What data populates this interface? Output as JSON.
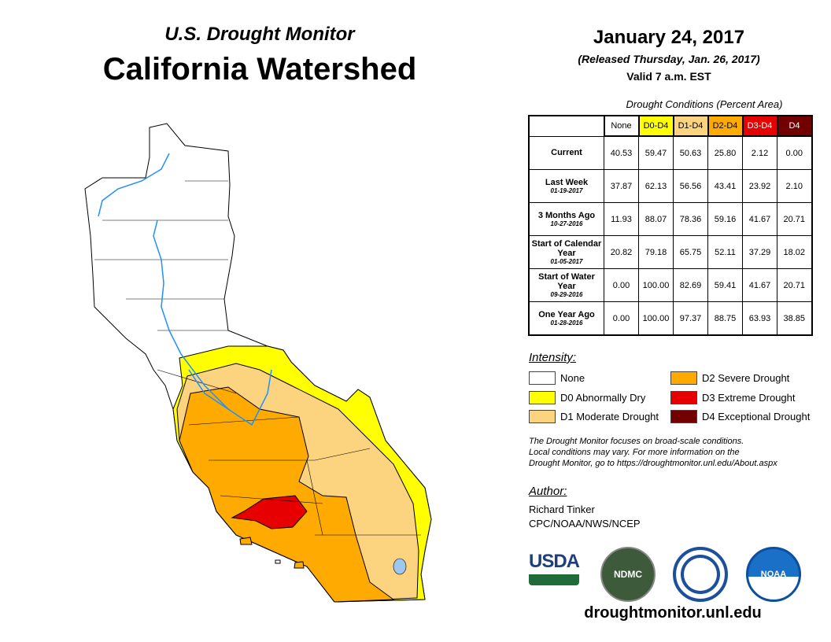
{
  "header": {
    "supertitle": "U.S. Drought Monitor",
    "title": "California Watershed",
    "date": "January 24, 2017",
    "released": "(Released Thursday, Jan. 26, 2017)",
    "valid": "Valid 7 a.m. EST"
  },
  "table": {
    "caption": "Drought Conditions (Percent Area)",
    "columns": [
      {
        "label": "None",
        "color": "#ffffff",
        "text": "#000"
      },
      {
        "label": "D0-D4",
        "color": "#ffff00",
        "text": "#000"
      },
      {
        "label": "D1-D4",
        "color": "#fcd37f",
        "text": "#000"
      },
      {
        "label": "D2-D4",
        "color": "#ffaa00",
        "text": "#000"
      },
      {
        "label": "D3-D4",
        "color": "#e60000",
        "text": "#fff"
      },
      {
        "label": "D4",
        "color": "#730000",
        "text": "#fff"
      }
    ],
    "rows": [
      {
        "label": "Current",
        "date": "",
        "values": [
          "40.53",
          "59.47",
          "50.63",
          "25.80",
          "2.12",
          "0.00"
        ]
      },
      {
        "label": "Last Week",
        "date": "01-19-2017",
        "values": [
          "37.87",
          "62.13",
          "56.56",
          "43.41",
          "23.92",
          "2.10"
        ]
      },
      {
        "label": "3 Months Ago",
        "date": "10-27-2016",
        "values": [
          "11.93",
          "88.07",
          "78.36",
          "59.16",
          "41.67",
          "20.71"
        ]
      },
      {
        "label": "Start of Calendar Year",
        "date": "01-05-2017",
        "values": [
          "20.82",
          "79.18",
          "65.75",
          "52.11",
          "37.29",
          "18.02"
        ]
      },
      {
        "label": "Start of Water Year",
        "date": "09-29-2016",
        "values": [
          "0.00",
          "100.00",
          "82.69",
          "59.41",
          "41.67",
          "20.71"
        ]
      },
      {
        "label": "One Year Ago",
        "date": "01-28-2016",
        "values": [
          "0.00",
          "100.00",
          "97.37",
          "88.75",
          "63.93",
          "38.85"
        ]
      }
    ]
  },
  "legend": {
    "title": "Intensity:",
    "items": [
      {
        "label": "None",
        "color": "#ffffff"
      },
      {
        "label": "D0 Abnormally Dry",
        "color": "#ffff00"
      },
      {
        "label": "D1 Moderate Drought",
        "color": "#fcd37f"
      },
      {
        "label": "D2 Severe Drought",
        "color": "#ffaa00"
      },
      {
        "label": "D3 Extreme Drought",
        "color": "#e60000"
      },
      {
        "label": "D4 Exceptional Drought",
        "color": "#730000"
      }
    ]
  },
  "note": [
    "The Drought Monitor focuses on broad-scale conditions.",
    "Local conditions may vary. For more information on the",
    "Drought Monitor, go to https://droughtmonitor.unl.edu/About.aspx"
  ],
  "author": {
    "label": "Author:",
    "name": "Richard Tinker",
    "org": "CPC/NOAA/NWS/NCEP"
  },
  "logos": {
    "usda": "USDA",
    "ndmc": "NDMC",
    "noaa": "NOAA"
  },
  "footer_url": "droughtmonitor.unl.edu"
}
